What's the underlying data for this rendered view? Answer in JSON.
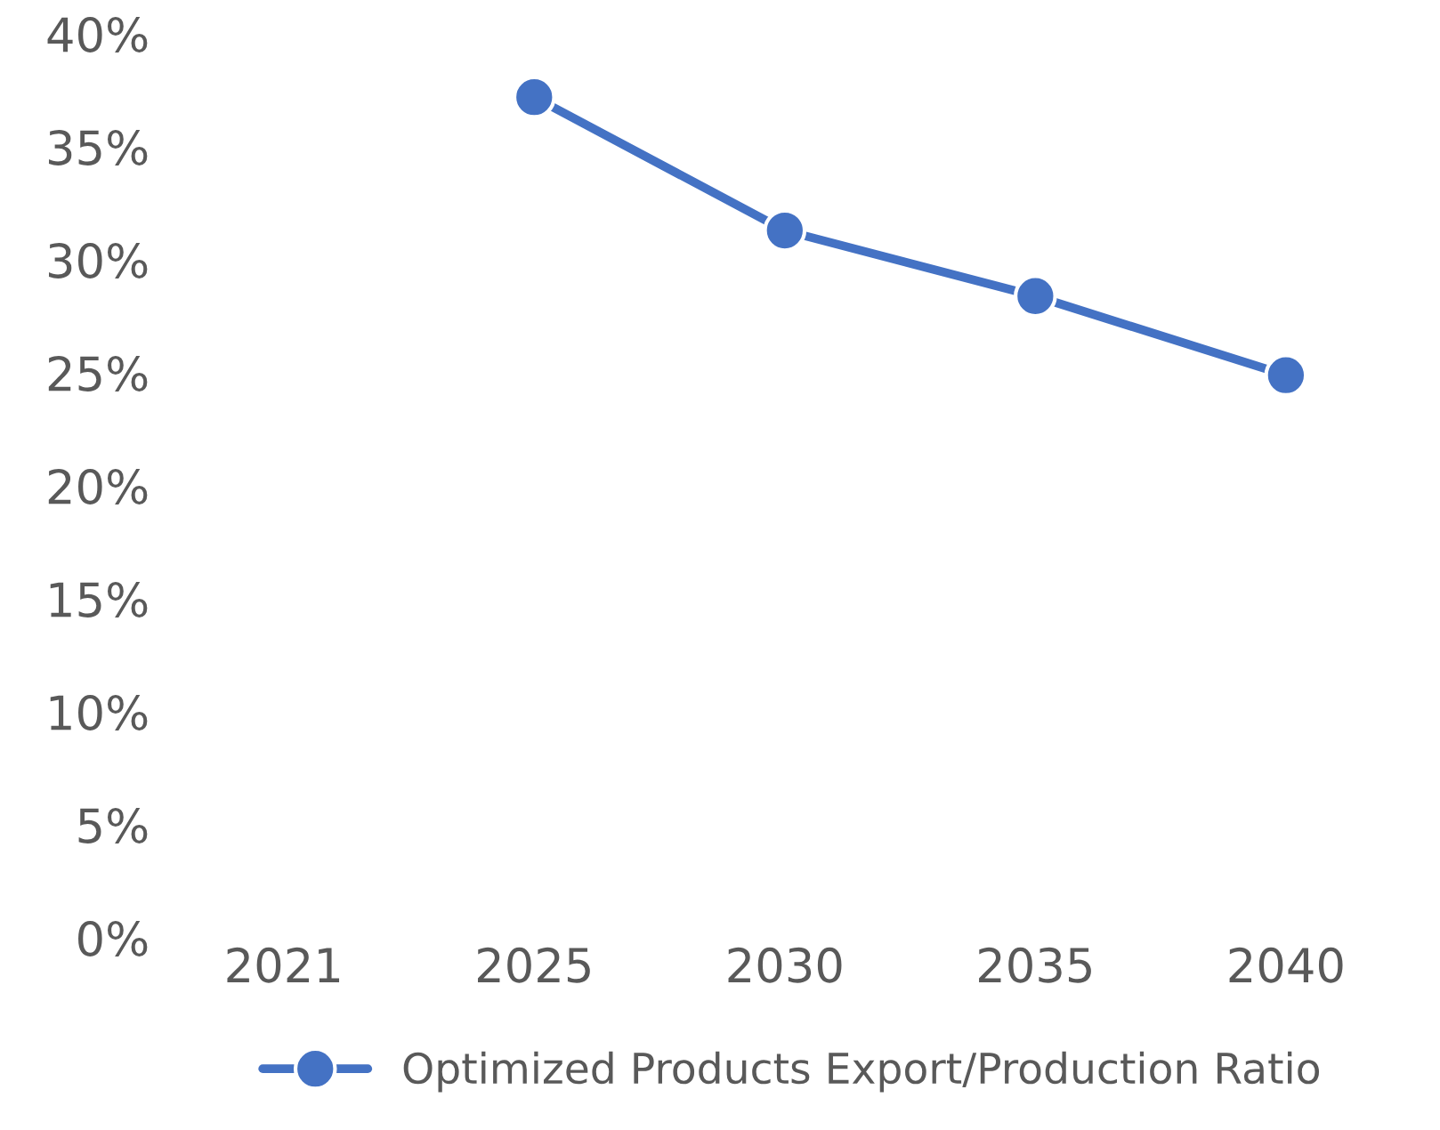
{
  "chart_data": {
    "type": "line",
    "categories": [
      "2021",
      "2025",
      "2030",
      "2035",
      "2040"
    ],
    "series": [
      {
        "name": "Optimized Products Export/Production Ratio",
        "color": "#4472c4",
        "values": [
          null,
          37.2,
          31.3,
          28.4,
          24.9
        ]
      }
    ],
    "ylim": [
      0,
      40
    ],
    "yticks": [
      {
        "value": 0,
        "label": "0%"
      },
      {
        "value": 5,
        "label": "5%"
      },
      {
        "value": 10,
        "label": "10%"
      },
      {
        "value": 15,
        "label": "15%"
      },
      {
        "value": 20,
        "label": "20%"
      },
      {
        "value": 25,
        "label": "25%"
      },
      {
        "value": 30,
        "label": "30%"
      },
      {
        "value": 35,
        "label": "35%"
      },
      {
        "value": 40,
        "label": "40%"
      }
    ],
    "grid": false,
    "legend": "bottom",
    "marker": "circle",
    "line_style": "solid"
  }
}
